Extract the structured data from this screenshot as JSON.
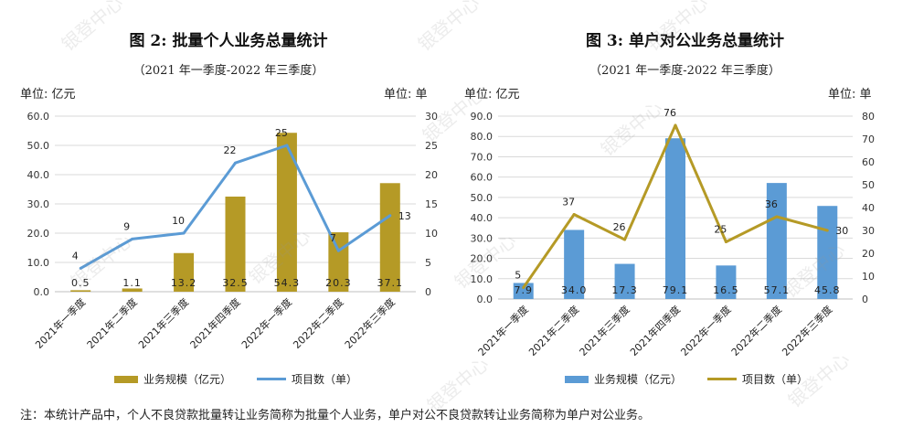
{
  "watermark": "银登中心",
  "footnote": "注：本统计产品中，个人不良贷款批量转让业务简称为批量个人业务，单户对公不良贷款转让业务简称为单户对公业务。",
  "chart_data": [
    {
      "type": "bar+line",
      "title": "图 2:  批量个人业务总量统计",
      "subtitle": "（2021 年一季度-2022 年三季度）",
      "left_unit": "单位: 亿元",
      "right_unit": "单位: 单",
      "categories": [
        "2021年一季度",
        "2021年二季度",
        "2021年三季度",
        "2021年四季度",
        "2022年一季度",
        "2022年二季度",
        "2022年三季度"
      ],
      "bar_series": {
        "name": "业务规模（亿元）",
        "values": [
          0.5,
          1.1,
          13.2,
          32.5,
          54.3,
          20.3,
          37.1
        ],
        "labels": [
          "0.5",
          "1.1",
          "13.2",
          "32.5",
          "54.3",
          "20.3",
          "37.1"
        ],
        "color": "#B59A26"
      },
      "line_series": {
        "name": "项目数（单）",
        "values": [
          4,
          9,
          10,
          22,
          25,
          7,
          13
        ],
        "color": "#5B9BD5"
      },
      "y_left": {
        "min": 0,
        "max": 60,
        "step": 10,
        "ticks": [
          "0.0",
          "10.0",
          "20.0",
          "30.0",
          "40.0",
          "50.0",
          "60.0"
        ]
      },
      "y_right": {
        "min": 0,
        "max": 30,
        "step": 5,
        "ticks": [
          "0",
          "5",
          "10",
          "15",
          "20",
          "25",
          "30"
        ]
      },
      "grid": true,
      "legend_position": "bottom"
    },
    {
      "type": "bar+line",
      "title": "图 3:  单户对公业务总量统计",
      "subtitle": "（2021 年一季度-2022 年三季度）",
      "left_unit": "单位: 亿元",
      "right_unit": "单位: 单",
      "categories": [
        "2021年一季度",
        "2021年二季度",
        "2021年三季度",
        "2021年四季度",
        "2022年一季度",
        "2022年二季度",
        "2022年三季度"
      ],
      "bar_series": {
        "name": "业务规模（亿元）",
        "values": [
          7.9,
          34.0,
          17.3,
          79.1,
          16.5,
          57.1,
          45.8
        ],
        "labels": [
          "7.9",
          "34.0",
          "17.3",
          "79.1",
          "16.5",
          "57.1",
          "45.8"
        ],
        "color": "#5B9BD5"
      },
      "line_series": {
        "name": "项目数（单）",
        "values": [
          5,
          37,
          26,
          76,
          25,
          36,
          30
        ],
        "color": "#B59A26"
      },
      "y_left": {
        "min": 0,
        "max": 90,
        "step": 10,
        "ticks": [
          "0.0",
          "10.0",
          "20.0",
          "30.0",
          "40.0",
          "50.0",
          "60.0",
          "70.0",
          "80.0",
          "90.0"
        ]
      },
      "y_right": {
        "min": 0,
        "max": 80,
        "step": 10,
        "ticks": [
          "0",
          "10",
          "20",
          "30",
          "40",
          "50",
          "60",
          "70",
          "80"
        ]
      },
      "grid": true,
      "legend_position": "bottom"
    }
  ]
}
